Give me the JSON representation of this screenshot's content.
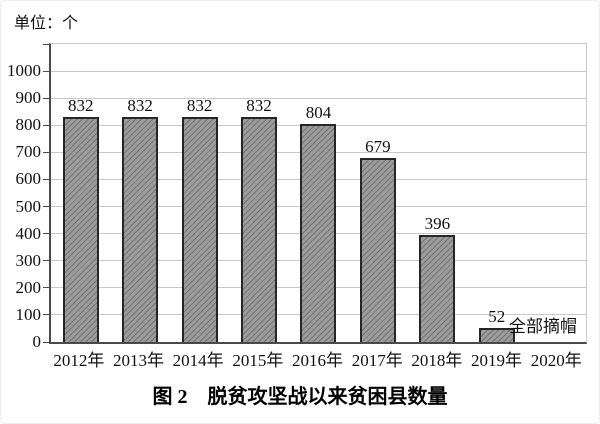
{
  "chart_data": {
    "type": "bar",
    "title": "图 2　脱贫攻坚战以来贫困县数量",
    "unit_label": "单位：个",
    "categories": [
      "2012年",
      "2013年",
      "2014年",
      "2015年",
      "2016年",
      "2017年",
      "2018年",
      "2019年",
      "2020年"
    ],
    "values": [
      832,
      832,
      832,
      832,
      804,
      679,
      396,
      52,
      null
    ],
    "annotation": {
      "text": "全部摘帽",
      "attached_to": "2019年"
    },
    "ylim": [
      0,
      1100
    ],
    "ytick_interval": 100,
    "ymax_label": 1000,
    "grid": true,
    "legend": null,
    "colors": {
      "bar_fill": "#9c9c9c",
      "bar_hatch": "#6f6f6f",
      "bar_border": "#262626",
      "axis": "#4a4a4a",
      "gridline": "#c9c9c9",
      "text": "#111111"
    }
  }
}
